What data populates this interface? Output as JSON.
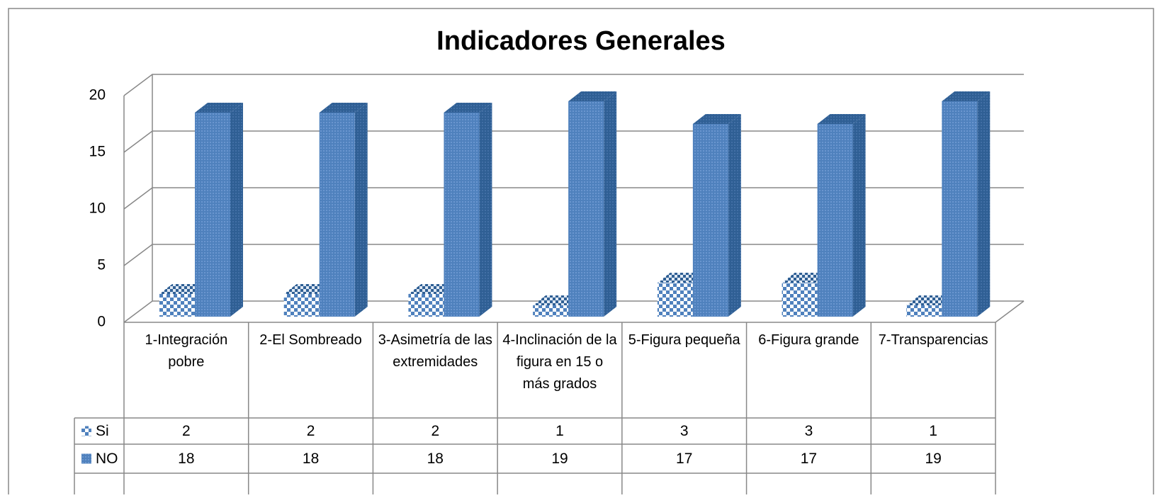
{
  "chart_data": {
    "type": "bar",
    "title": "Indicadores Generales",
    "categories": [
      "1-Integración pobre",
      "2-El Sombreado",
      "3-Asimetría de las extremidades",
      "4-Inclinación de la figura en 15 o más grados",
      "5-Figura pequeña",
      "6-Figura grande",
      "7-Transparencias"
    ],
    "series": [
      {
        "name": "Si",
        "color": "#4f81bd",
        "values": [
          2,
          2,
          2,
          1,
          3,
          3,
          1
        ]
      },
      {
        "name": "NO",
        "color": "#4f81bd",
        "values": [
          18,
          18,
          18,
          19,
          17,
          17,
          19
        ]
      }
    ],
    "ylim": [
      0,
      20
    ],
    "yticks": [
      0,
      5,
      10,
      15,
      20
    ],
    "grid": true
  }
}
